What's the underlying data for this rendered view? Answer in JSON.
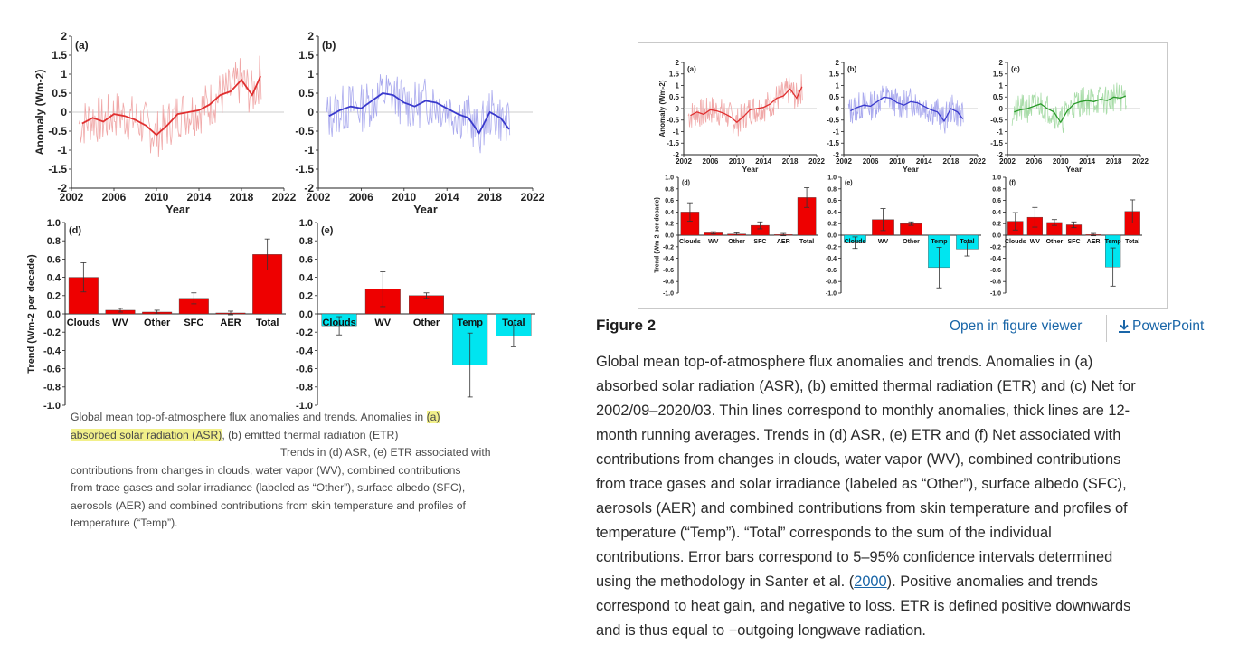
{
  "colors": {
    "asr": "#e03030",
    "asr_thin": "#f0a8a8",
    "etr": "#3a3acc",
    "etr_thin": "#aaaaee",
    "net": "#2a9a2a",
    "net_thin": "#a8dca8",
    "bar_pos": "#ee0000",
    "bar_neg": "#00e5f0",
    "link": "#1a66a8"
  },
  "chart_data": [
    {
      "id": "a",
      "type": "line",
      "panel_label": "(a)",
      "ylabel": "Anomaly (Wm-2)",
      "xlabel": "Year",
      "xlim": [
        2002,
        2022
      ],
      "ylim": [
        -2,
        2
      ],
      "x_ticks": [
        "2002",
        "2006",
        "2010",
        "2014",
        "2018",
        "2022"
      ],
      "y_ticks": [
        "2",
        "1.5",
        "1",
        "0.5",
        "0",
        "-0.5",
        "-1",
        "-1.5",
        "-2"
      ],
      "series": [
        {
          "style": "12-month running mean",
          "x": [
            2003,
            2004,
            2005,
            2006,
            2007,
            2008,
            2009,
            2010,
            2011,
            2012,
            2013,
            2014,
            2015,
            2016,
            2017,
            2018,
            2019,
            2019.8
          ],
          "y": [
            -0.3,
            -0.15,
            -0.25,
            -0.05,
            -0.1,
            -0.2,
            -0.35,
            -0.6,
            -0.35,
            -0.05,
            0.0,
            0.05,
            0.2,
            0.45,
            0.55,
            0.85,
            0.45,
            0.95
          ]
        }
      ]
    },
    {
      "id": "b",
      "type": "line",
      "panel_label": "(b)",
      "xlabel": "Year",
      "xlim": [
        2002,
        2022
      ],
      "ylim": [
        -2,
        2
      ],
      "x_ticks": [
        "2002",
        "2006",
        "2010",
        "2014",
        "2018",
        "2022"
      ],
      "y_ticks": [
        "2",
        "1.5",
        "1",
        "0.5",
        "0",
        "-0.5",
        "-1",
        "-1.5",
        "-2"
      ],
      "series": [
        {
          "style": "12-month running mean",
          "x": [
            2003,
            2004,
            2005,
            2006,
            2007,
            2008,
            2009,
            2010,
            2011,
            2012,
            2013,
            2014,
            2015,
            2016,
            2017,
            2018,
            2019,
            2019.8
          ],
          "y": [
            -0.1,
            0.05,
            0.15,
            0.1,
            0.3,
            0.5,
            0.45,
            0.25,
            0.15,
            0.3,
            0.25,
            0.1,
            -0.05,
            -0.15,
            -0.55,
            0.0,
            -0.15,
            -0.45
          ]
        }
      ]
    },
    {
      "id": "c",
      "type": "line",
      "panel_label": "(c)",
      "xlabel": "Year",
      "xlim": [
        2002,
        2022
      ],
      "ylim": [
        -2,
        2
      ],
      "x_ticks": [
        "2002",
        "2006",
        "2010",
        "2014",
        "2018",
        "2022"
      ],
      "y_ticks": [
        "2",
        "1.5",
        "1",
        "0.5",
        "0",
        "-0.5",
        "-1",
        "-1.5",
        "-2"
      ],
      "series": [
        {
          "style": "12-month running mean",
          "x": [
            2003,
            2004,
            2005,
            2006,
            2007,
            2008,
            2009,
            2010,
            2011,
            2012,
            2013,
            2014,
            2015,
            2016,
            2017,
            2018,
            2019,
            2019.8
          ],
          "y": [
            -0.15,
            -0.05,
            0.0,
            0.1,
            0.2,
            0.0,
            -0.15,
            -0.6,
            -0.1,
            0.2,
            0.3,
            0.35,
            0.3,
            0.4,
            0.35,
            0.5,
            0.45,
            0.55
          ]
        }
      ]
    },
    {
      "id": "d",
      "type": "bar",
      "panel_label": "(d)",
      "ylabel": "Trend (Wm-2 per decade)",
      "ylim": [
        -1,
        1
      ],
      "y_ticks": [
        "1.0",
        "0.8",
        "0.6",
        "0.4",
        "0.2",
        "0.0",
        "-0.2",
        "-0.4",
        "-0.6",
        "-0.8",
        "-1.0"
      ],
      "categories": [
        "Clouds",
        "WV",
        "Other",
        "SFC",
        "AER",
        "Total"
      ],
      "values": [
        0.4,
        0.04,
        0.02,
        0.17,
        0.01,
        0.65
      ],
      "errors": [
        0.16,
        0.02,
        0.02,
        0.06,
        0.02,
        0.17
      ]
    },
    {
      "id": "e",
      "type": "bar",
      "panel_label": "(e)",
      "ylim": [
        -1,
        1
      ],
      "y_ticks": [
        "1.0",
        "0.8",
        "0.6",
        "0.4",
        "0.2",
        "0.0",
        "-0.2",
        "-0.4",
        "-0.6",
        "-0.8",
        "-1.0"
      ],
      "categories": [
        "Clouds",
        "WV",
        "Other",
        "Temp",
        "Total"
      ],
      "values": [
        -0.13,
        0.27,
        0.2,
        -0.56,
        -0.24
      ],
      "errors": [
        0.1,
        0.19,
        0.03,
        0.35,
        0.12
      ]
    },
    {
      "id": "f",
      "type": "bar",
      "panel_label": "(f)",
      "ylim": [
        -1,
        1
      ],
      "y_ticks": [
        "1.0",
        "0.8",
        "0.6",
        "0.4",
        "0.2",
        "0.0",
        "-0.2",
        "-0.4",
        "-0.6",
        "-0.8",
        "-1.0"
      ],
      "categories": [
        "Clouds",
        "WV",
        "Other",
        "SFC",
        "AER",
        "Temp",
        "Total"
      ],
      "values": [
        0.24,
        0.31,
        0.22,
        0.18,
        0.01,
        -0.55,
        0.41
      ],
      "errors": [
        0.15,
        0.17,
        0.05,
        0.05,
        0.02,
        0.33,
        0.2
      ]
    }
  ],
  "left_caption": {
    "line1_pre": "Global mean top-of-atmosphere flux anomalies and trends. Anomalies in ",
    "line1_hl": "(a)",
    "line2_hl": "absorbed solar radiation (ASR)",
    "line2_post": ", (b) emitted thermal radiation (ETR)",
    "line3": "Trends in (d) ASR, (e) ETR associated with",
    "line4": "contributions from changes in clouds, water vapor (WV), combined contributions",
    "line5": "from trace gases and solar irradiance (labeled as “Other”), surface albedo (SFC),",
    "line6": "aerosols (AER) and combined contributions from skin temperature and profiles of",
    "line7": "temperature (“Temp”)."
  },
  "figure": {
    "title": "Figure 2",
    "viewer_link": "Open in figure viewer",
    "powerpoint_link": "PowerPoint",
    "caption_lines": [
      "Global mean top-of-atmosphere flux anomalies and trends. Anomalies in (a)",
      "absorbed solar radiation (ASR), (b) emitted thermal radiation (ETR) and (c) Net for",
      "2002/09–2020/03. Thin lines correspond to monthly anomalies, thick lines are 12-",
      "month running averages. Trends in (d) ASR, (e) ETR and (f) Net associated with",
      "contributions from changes in clouds, water vapor (WV), combined contributions",
      "from trace gases and solar irradiance (labeled as “Other”), surface albedo (SFC),",
      "aerosols (AER) and combined contributions from skin temperature and profiles of",
      "temperature (“Temp”). “Total” corresponds to the sum of the individual",
      "contributions. Error bars correspond to 5–95% confidence intervals determined"
    ],
    "caption_line10_pre": "using the methodology in Santer et al. (",
    "caption_line10_link": "2000",
    "caption_line10_post": "). Positive anomalies and trends",
    "caption_lines_end": [
      "correspond to heat gain, and negative to loss. ETR is defined positive downwards",
      "and is thus equal to −outgoing longwave radiation."
    ]
  }
}
